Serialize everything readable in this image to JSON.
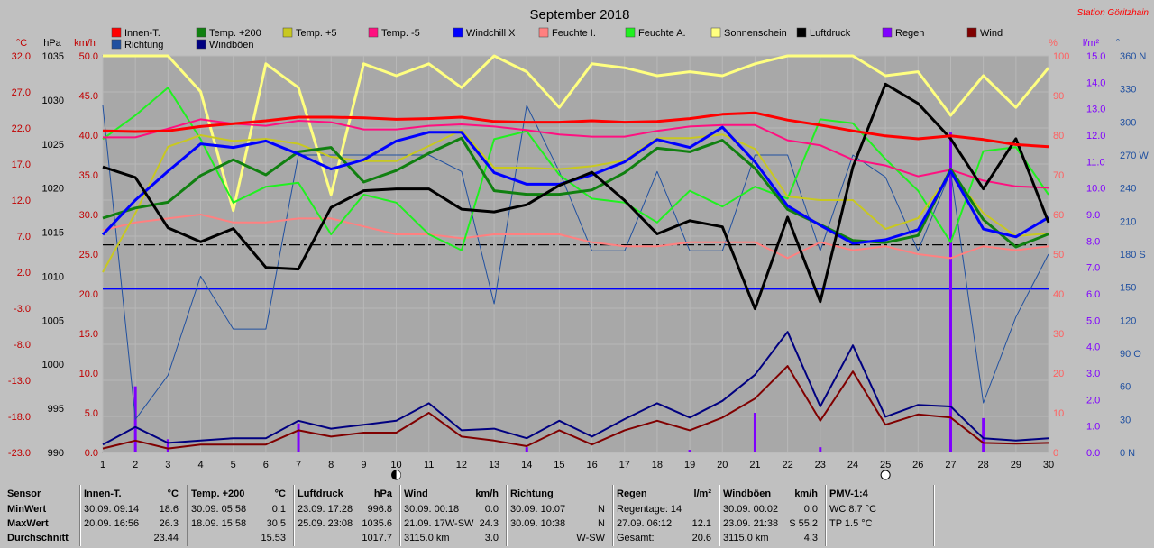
{
  "station": "Station Göritzhain",
  "chart_data": {
    "type": "line",
    "title": "September 2018",
    "x": [
      1,
      2,
      3,
      4,
      5,
      6,
      7,
      8,
      9,
      10,
      11,
      12,
      13,
      14,
      15,
      16,
      17,
      18,
      19,
      20,
      21,
      22,
      23,
      24,
      25,
      26,
      27,
      28,
      29,
      30
    ],
    "axes": {
      "celsius": {
        "unit": "°C",
        "min": -23.0,
        "max": 32.0,
        "ticks": [
          "32.0",
          "27.0",
          "22.0",
          "17.0",
          "12.0",
          "7.0",
          "2.0",
          "-3.0",
          "-8.0",
          "-13.0",
          "-18.0",
          "-23.0"
        ],
        "color": "#c00000"
      },
      "hpa": {
        "unit": "hPa",
        "min": 990,
        "max": 1035,
        "ticks": [
          "1035",
          "1030",
          "1025",
          "1020",
          "1015",
          "1010",
          "1005",
          "1000",
          "995",
          "990"
        ],
        "color": "#000000"
      },
      "kmh": {
        "unit": "km/h",
        "min": 0,
        "max": 50,
        "ticks": [
          "50.0",
          "45.0",
          "40.0",
          "35.0",
          "30.0",
          "25.0",
          "20.0",
          "15.0",
          "10.0",
          "5.0",
          "0.0"
        ],
        "color": "#c00000"
      },
      "percent": {
        "unit": "%",
        "min": 0,
        "max": 100,
        "ticks": [
          "100",
          "90",
          "80",
          "70",
          "60",
          "50",
          "40",
          "30",
          "20",
          "10",
          "0"
        ],
        "color": "#ff6060"
      },
      "rain": {
        "unit": "l/m²",
        "min": 0,
        "max": 15,
        "ticks": [
          "15.0",
          "14.0",
          "13.0",
          "12.0",
          "11.0",
          "10.0",
          "9.0",
          "8.0",
          "7.0",
          "6.0",
          "5.0",
          "4.0",
          "3.0",
          "2.0",
          "1.0",
          "0.0"
        ],
        "color": "#8000ff"
      },
      "direction": {
        "unit": "°",
        "ticks": [
          "360 N",
          "330",
          "300",
          "270 W",
          "240",
          "210",
          "180 S",
          "150",
          "120",
          "90 O",
          "60",
          "30",
          "0 N"
        ],
        "color": "#2050a0"
      }
    },
    "series": [
      {
        "name": "Innen-T.",
        "color": "#ff0000",
        "axis": "celsius",
        "width": 3,
        "values": [
          21.6,
          21.5,
          21.6,
          22.2,
          22.6,
          23.0,
          23.5,
          23.5,
          23.4,
          23.2,
          23.3,
          23.5,
          22.9,
          22.8,
          22.8,
          23.0,
          22.8,
          22.9,
          23.3,
          23.9,
          24.1,
          23.1,
          22.4,
          21.6,
          20.9,
          20.5,
          20.9,
          20.4,
          19.7,
          19.4
        ]
      },
      {
        "name": "Temp. +200",
        "color": "#108010",
        "axis": "celsius",
        "width": 3,
        "values": [
          9.5,
          10.9,
          11.7,
          15.4,
          17.6,
          15.5,
          18.7,
          19.3,
          14.5,
          16.1,
          18.5,
          20.6,
          13.3,
          12.8,
          12.8,
          13.4,
          15.8,
          19.2,
          18.7,
          20.3,
          16.4,
          10.7,
          8.6,
          6.4,
          6.1,
          7.1,
          16.3,
          9.3,
          5.5,
          7.3
        ]
      },
      {
        "name": "Temp. +5",
        "color": "#c8c820",
        "axis": "celsius",
        "width": 2,
        "values": [
          2.0,
          10.2,
          19.4,
          21.0,
          20.2,
          20.5,
          19.8,
          18.0,
          17.4,
          17.4,
          19.5,
          21.7,
          16.5,
          16.5,
          16.3,
          16.7,
          17.5,
          20.6,
          20.6,
          21.1,
          19.1,
          12.5,
          12.0,
          12.0,
          8.0,
          9.5,
          15.8,
          10.2,
          7.0,
          7.4
        ]
      },
      {
        "name": "Temp. -5",
        "color": "#ff1080",
        "axis": "celsius",
        "width": 2,
        "values": [
          20.7,
          20.7,
          21.9,
          23.2,
          22.6,
          22.3,
          23.0,
          22.8,
          21.8,
          21.8,
          22.3,
          22.5,
          22.2,
          21.7,
          21.1,
          20.8,
          20.8,
          21.6,
          22.2,
          22.4,
          22.4,
          20.3,
          19.6,
          17.6,
          16.8,
          15.3,
          16.2,
          14.7,
          13.9,
          13.7
        ]
      },
      {
        "name": "Windchill X",
        "color": "#0000ff",
        "axis": "celsius",
        "width": 3,
        "values": [
          7.2,
          12.0,
          16.0,
          19.8,
          19.3,
          20.2,
          18.4,
          16.3,
          17.6,
          20.2,
          21.4,
          21.4,
          15.8,
          14.2,
          14.2,
          15.5,
          17.3,
          20.4,
          19.3,
          22.1,
          17.3,
          11.2,
          8.5,
          6.0,
          6.5,
          7.9,
          16.0,
          8.0,
          6.9,
          9.6
        ]
      },
      {
        "name": "Feuchte I.",
        "color": "#ff8080",
        "axis": "percent",
        "width": 2,
        "values": [
          56,
          58,
          59,
          60,
          58,
          58,
          59,
          59,
          57,
          55,
          55,
          54,
          55,
          55,
          55,
          53,
          52,
          52,
          53,
          53,
          53,
          49,
          53,
          51,
          52,
          50,
          49,
          52,
          51,
          52
        ]
      },
      {
        "name": "Feuchte A.",
        "color": "#20f020",
        "axis": "percent",
        "width": 2,
        "values": [
          79,
          85,
          92,
          79,
          63,
          67,
          68,
          55,
          65,
          63,
          55,
          51,
          79,
          81,
          70,
          64,
          63,
          58,
          66,
          62,
          67,
          64,
          84,
          83,
          74,
          66,
          53,
          76,
          77,
          65
        ]
      },
      {
        "name": "Sonnenschein",
        "color": "#ffff80",
        "axis": "percent",
        "width": 3,
        "values": [
          100,
          100,
          100,
          91,
          61,
          98,
          92,
          65,
          98,
          95,
          98,
          92,
          100,
          96,
          87,
          98,
          97,
          95,
          96,
          95,
          98,
          100,
          100,
          100,
          95,
          96,
          85,
          95,
          87,
          97
        ]
      },
      {
        "name": "Luftdruck",
        "color": "#000000",
        "axis": "hpa",
        "width": 3,
        "values": [
          1022.4,
          1021.2,
          1015.5,
          1013.9,
          1015.4,
          1011.0,
          1010.8,
          1017.8,
          1019.7,
          1019.9,
          1019.9,
          1017.6,
          1017.3,
          1018.1,
          1020.3,
          1021.8,
          1018.6,
          1014.8,
          1016.3,
          1015.6,
          1006.3,
          1016.7,
          1007.1,
          1022.4,
          1031.8,
          1029.6,
          1025.6,
          1019.9,
          1025.6,
          1016.1
        ]
      },
      {
        "name": "Regen",
        "color": "#8000ff",
        "axis": "rain",
        "width": 3,
        "type": "bar",
        "values": [
          0,
          2.5,
          0.5,
          0,
          0,
          0,
          1.1,
          0,
          0,
          0,
          0,
          0,
          0,
          0.2,
          0,
          0,
          0,
          0,
          0.1,
          0,
          1.5,
          0,
          0.2,
          0,
          0,
          0,
          12.1,
          1.3,
          0,
          0
        ]
      },
      {
        "name": "Wind",
        "color": "#800000",
        "axis": "kmh",
        "width": 2,
        "values": [
          0.5,
          1.5,
          0.5,
          1.0,
          1.0,
          1.0,
          2.8,
          2.0,
          2.5,
          2.5,
          5.0,
          2.0,
          1.5,
          0.8,
          2.8,
          1.0,
          2.8,
          4.0,
          2.8,
          4.4,
          6.8,
          10.9,
          4.0,
          10.2,
          3.5,
          4.8,
          4.4,
          1.2,
          1.1,
          1.2
        ]
      },
      {
        "name": "Richtung",
        "color": "#2050a0",
        "axis": "direction",
        "width": 1,
        "values": [
          315,
          30,
          70,
          160,
          112,
          112,
          270,
          270,
          270,
          270,
          270,
          255,
          135,
          315,
          255,
          183,
          183,
          255,
          183,
          183,
          270,
          270,
          183,
          270,
          250,
          183,
          255,
          45,
          123,
          180
        ]
      },
      {
        "name": "Windböen",
        "color": "#000080",
        "axis": "kmh",
        "width": 2,
        "values": [
          1.0,
          3.2,
          1.2,
          1.5,
          1.8,
          1.8,
          4.0,
          3.0,
          3.5,
          4.0,
          6.2,
          2.8,
          3.0,
          1.8,
          4.0,
          2.0,
          4.2,
          6.2,
          4.4,
          6.5,
          9.8,
          15.2,
          5.8,
          13.5,
          4.5,
          6.0,
          5.8,
          1.8,
          1.5,
          1.8
        ]
      }
    ],
    "reference_lines": [
      {
        "axis": "celsius",
        "value": 5.8,
        "color": "#000000",
        "style": "dash-dot"
      },
      {
        "axis": "celsius",
        "value": -0.3,
        "color": "#0000ff",
        "style": "solid"
      }
    ],
    "markers": [
      {
        "x": 10,
        "symbol": "new-moon"
      },
      {
        "x": 25,
        "symbol": "full-moon"
      }
    ]
  },
  "stats": {
    "row_labels": {
      "sensor": "Sensor",
      "min": "MinWert",
      "max": "MaxWert",
      "avg": "Durchschnitt"
    },
    "columns": [
      {
        "title": "Innen-T.",
        "unit": "°C",
        "min": "30.09.  09:14",
        "min_val": "18.6",
        "max": "20.09.  16:56",
        "max_val": "26.3",
        "avg": "23.44"
      },
      {
        "title": "Temp. +200",
        "unit": "°C",
        "min": "30.09.  05:58",
        "min_val": "0.1",
        "max": "18.09.  15:58",
        "max_val": "30.5",
        "avg": "15.53"
      },
      {
        "title": "Luftdruck",
        "unit": "hPa",
        "min": "23.09.  17:28",
        "min_val": "996.8",
        "max": "25.09.  23:08",
        "max_val": "1035.6",
        "avg": "1017.7"
      },
      {
        "title": "Wind",
        "unit": "km/h",
        "min": "30.09.  00:18",
        "min_val": "0.0",
        "max": "21.09.  17W-SW",
        "max_val": "24.3",
        "avg_left": "3115.0 km",
        "avg": "3.0"
      },
      {
        "title": "Richtung",
        "unit": "",
        "min": "30.09.  10:07",
        "min_val": "N",
        "max": "30.09.  10:38",
        "max_val": "N",
        "avg": "W-SW"
      },
      {
        "title": "Regen",
        "unit": "l/m²",
        "min": "Regentage: 14",
        "min_val": "",
        "max": "27.09.  06:12",
        "max_val": "12.1",
        "avg_left": "Gesamt:",
        "avg": "20.6"
      },
      {
        "title": "Windböen",
        "unit": "km/h",
        "min": "30.09.  00:02",
        "min_val": "0.0",
        "max": "23.09.  21:38",
        "max_val": "S 55.2",
        "avg_left": "3115.0 km",
        "avg": "4.3"
      },
      {
        "title": "PMV-1:4",
        "unit": "",
        "min": "WC 8.7 °C",
        "min_val": "",
        "max": "TP 1.5 °C",
        "max_val": "",
        "avg": ""
      }
    ]
  }
}
